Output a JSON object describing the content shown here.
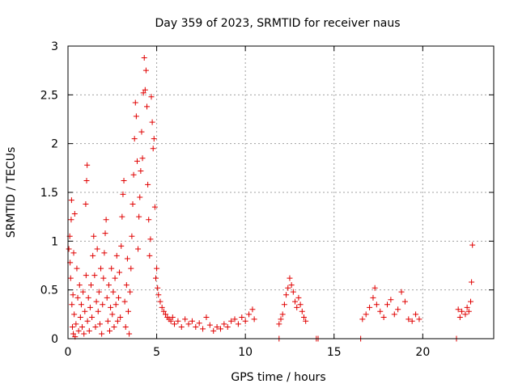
{
  "chart_data": {
    "type": "scatter",
    "title": "Day 359 of 2023, SRMTID for receiver naus",
    "xlabel": "GPS time / hours",
    "ylabel": "SRMTID / TECUs",
    "xlim": [
      0,
      24
    ],
    "ylim": [
      0,
      3
    ],
    "x_ticks": [
      {
        "value": 0,
        "label": "0"
      },
      {
        "value": 5,
        "label": "5"
      },
      {
        "value": 10,
        "label": "10"
      },
      {
        "value": 15,
        "label": "15"
      },
      {
        "value": 20,
        "label": "20"
      }
    ],
    "y_ticks": [
      {
        "value": 0,
        "label": "0"
      },
      {
        "value": 0.5,
        "label": "0.5"
      },
      {
        "value": 1,
        "label": "1"
      },
      {
        "value": 1.5,
        "label": "1.5"
      },
      {
        "value": 2,
        "label": "2"
      },
      {
        "value": 2.5,
        "label": "2.5"
      },
      {
        "value": 3,
        "label": "3"
      }
    ],
    "grid": true,
    "marker": "plus",
    "series": [
      {
        "name": "SRMTID",
        "color": "#e00000",
        "points": [
          [
            0.05,
            0.92
          ],
          [
            0.1,
            1.05
          ],
          [
            0.12,
            0.78
          ],
          [
            0.15,
            0.62
          ],
          [
            0.18,
            1.22
          ],
          [
            0.2,
            1.42
          ],
          [
            0.22,
            0.35
          ],
          [
            0.25,
            0.12
          ],
          [
            0.28,
            0.45
          ],
          [
            0.3,
            0.05
          ],
          [
            0.32,
            0.88
          ],
          [
            0.35,
            0.25
          ],
          [
            0.38,
            1.28
          ],
          [
            0.4,
            0.02
          ],
          [
            0.45,
            0.15
          ],
          [
            0.5,
            0.72
          ],
          [
            0.55,
            0.42
          ],
          [
            0.6,
            0.08
          ],
          [
            0.65,
            0.55
          ],
          [
            0.7,
            0.22
          ],
          [
            0.75,
            0.35
          ],
          [
            0.8,
            0.12
          ],
          [
            0.85,
            0.48
          ],
          [
            0.9,
            0.05
          ],
          [
            0.95,
            0.28
          ],
          [
            1.0,
            1.38
          ],
          [
            1.02,
            0.65
          ],
          [
            1.05,
            1.62
          ],
          [
            1.08,
            1.78
          ],
          [
            1.1,
            0.18
          ],
          [
            1.15,
            0.42
          ],
          [
            1.2,
            0.08
          ],
          [
            1.25,
            0.32
          ],
          [
            1.3,
            0.55
          ],
          [
            1.35,
            0.22
          ],
          [
            1.4,
            0.85
          ],
          [
            1.45,
            1.05
          ],
          [
            1.5,
            0.65
          ],
          [
            1.55,
            0.12
          ],
          [
            1.6,
            0.38
          ],
          [
            1.65,
            0.92
          ],
          [
            1.7,
            0.28
          ],
          [
            1.75,
            0.48
          ],
          [
            1.8,
            0.15
          ],
          [
            1.85,
            0.72
          ],
          [
            1.9,
            0.05
          ],
          [
            1.95,
            0.35
          ],
          [
            2.0,
            0.62
          ],
          [
            2.05,
            0.88
          ],
          [
            2.1,
            1.08
          ],
          [
            2.15,
            1.22
          ],
          [
            2.2,
            0.42
          ],
          [
            2.25,
            0.18
          ],
          [
            2.3,
            0.55
          ],
          [
            2.35,
            0.08
          ],
          [
            2.4,
            0.32
          ],
          [
            2.45,
            0.72
          ],
          [
            2.5,
            0.25
          ],
          [
            2.55,
            0.48
          ],
          [
            2.6,
            0.12
          ],
          [
            2.65,
            0.62
          ],
          [
            2.7,
            0.35
          ],
          [
            2.75,
            0.85
          ],
          [
            2.8,
            0.18
          ],
          [
            2.85,
            0.42
          ],
          [
            2.9,
            0.68
          ],
          [
            2.95,
            0.22
          ],
          [
            3.0,
            0.95
          ],
          [
            3.05,
            1.25
          ],
          [
            3.1,
            1.48
          ],
          [
            3.15,
            1.62
          ],
          [
            3.2,
            0.38
          ],
          [
            3.25,
            0.12
          ],
          [
            3.3,
            0.55
          ],
          [
            3.35,
            0.82
          ],
          [
            3.4,
            0.28
          ],
          [
            3.45,
            0.05
          ],
          [
            3.5,
            0.48
          ],
          [
            3.55,
            0.72
          ],
          [
            3.6,
            1.05
          ],
          [
            3.65,
            1.38
          ],
          [
            3.7,
            1.68
          ],
          [
            3.75,
            2.05
          ],
          [
            3.8,
            2.42
          ],
          [
            3.85,
            2.28
          ],
          [
            3.9,
            1.82
          ],
          [
            3.95,
            0.92
          ],
          [
            4.0,
            1.25
          ],
          [
            4.05,
            1.45
          ],
          [
            4.1,
            1.72
          ],
          [
            4.15,
            2.12
          ],
          [
            4.2,
            1.85
          ],
          [
            4.25,
            2.52
          ],
          [
            4.3,
            2.88
          ],
          [
            4.35,
            2.55
          ],
          [
            4.4,
            2.75
          ],
          [
            4.45,
            2.38
          ],
          [
            4.5,
            1.58
          ],
          [
            4.55,
            1.22
          ],
          [
            4.6,
            0.85
          ],
          [
            4.65,
            1.02
          ],
          [
            4.7,
            2.48
          ],
          [
            4.75,
            2.22
          ],
          [
            4.8,
            1.95
          ],
          [
            4.85,
            2.05
          ],
          [
            4.9,
            1.35
          ],
          [
            4.95,
            0.62
          ],
          [
            5.0,
            0.72
          ],
          [
            5.05,
            0.52
          ],
          [
            5.1,
            0.45
          ],
          [
            5.2,
            0.38
          ],
          [
            5.3,
            0.32
          ],
          [
            5.4,
            0.28
          ],
          [
            5.5,
            0.25
          ],
          [
            5.6,
            0.22
          ],
          [
            5.7,
            0.2
          ],
          [
            5.8,
            0.18
          ],
          [
            5.9,
            0.22
          ],
          [
            6.0,
            0.15
          ],
          [
            6.2,
            0.18
          ],
          [
            6.4,
            0.12
          ],
          [
            6.6,
            0.2
          ],
          [
            6.8,
            0.15
          ],
          [
            7.0,
            0.18
          ],
          [
            7.2,
            0.12
          ],
          [
            7.4,
            0.16
          ],
          [
            7.6,
            0.1
          ],
          [
            7.8,
            0.22
          ],
          [
            8.0,
            0.14
          ],
          [
            8.2,
            0.08
          ],
          [
            8.4,
            0.12
          ],
          [
            8.6,
            0.1
          ],
          [
            8.8,
            0.15
          ],
          [
            9.0,
            0.12
          ],
          [
            9.2,
            0.18
          ],
          [
            9.4,
            0.2
          ],
          [
            9.6,
            0.15
          ],
          [
            9.8,
            0.22
          ],
          [
            10.0,
            0.18
          ],
          [
            10.2,
            0.25
          ],
          [
            10.4,
            0.3
          ],
          [
            10.5,
            0.2
          ],
          [
            11.9,
            0.15
          ],
          [
            12.0,
            0.2
          ],
          [
            12.1,
            0.25
          ],
          [
            12.2,
            0.35
          ],
          [
            12.3,
            0.45
          ],
          [
            12.4,
            0.52
          ],
          [
            12.5,
            0.62
          ],
          [
            12.6,
            0.55
          ],
          [
            12.7,
            0.48
          ],
          [
            12.8,
            0.38
          ],
          [
            12.9,
            0.32
          ],
          [
            13.0,
            0.42
          ],
          [
            13.1,
            0.35
          ],
          [
            13.2,
            0.28
          ],
          [
            13.3,
            0.22
          ],
          [
            13.4,
            0.18
          ],
          [
            16.6,
            0.2
          ],
          [
            16.8,
            0.25
          ],
          [
            17.0,
            0.32
          ],
          [
            17.2,
            0.42
          ],
          [
            17.3,
            0.52
          ],
          [
            17.4,
            0.35
          ],
          [
            17.6,
            0.28
          ],
          [
            17.8,
            0.22
          ],
          [
            18.0,
            0.35
          ],
          [
            18.2,
            0.4
          ],
          [
            18.4,
            0.25
          ],
          [
            18.6,
            0.3
          ],
          [
            18.8,
            0.48
          ],
          [
            19.0,
            0.38
          ],
          [
            19.2,
            0.2
          ],
          [
            19.4,
            0.18
          ],
          [
            19.6,
            0.25
          ],
          [
            19.8,
            0.2
          ],
          [
            22.0,
            0.3
          ],
          [
            22.1,
            0.22
          ],
          [
            22.2,
            0.28
          ],
          [
            22.4,
            0.25
          ],
          [
            22.5,
            0.32
          ],
          [
            22.6,
            0.28
          ],
          [
            22.7,
            0.38
          ],
          [
            22.75,
            0.58
          ],
          [
            22.8,
            0.96
          ],
          [
            11.9,
            0.0
          ],
          [
            14.0,
            0.0
          ],
          [
            14.1,
            0.0
          ],
          [
            16.5,
            0.0
          ],
          [
            21.9,
            0.0
          ]
        ]
      }
    ]
  }
}
